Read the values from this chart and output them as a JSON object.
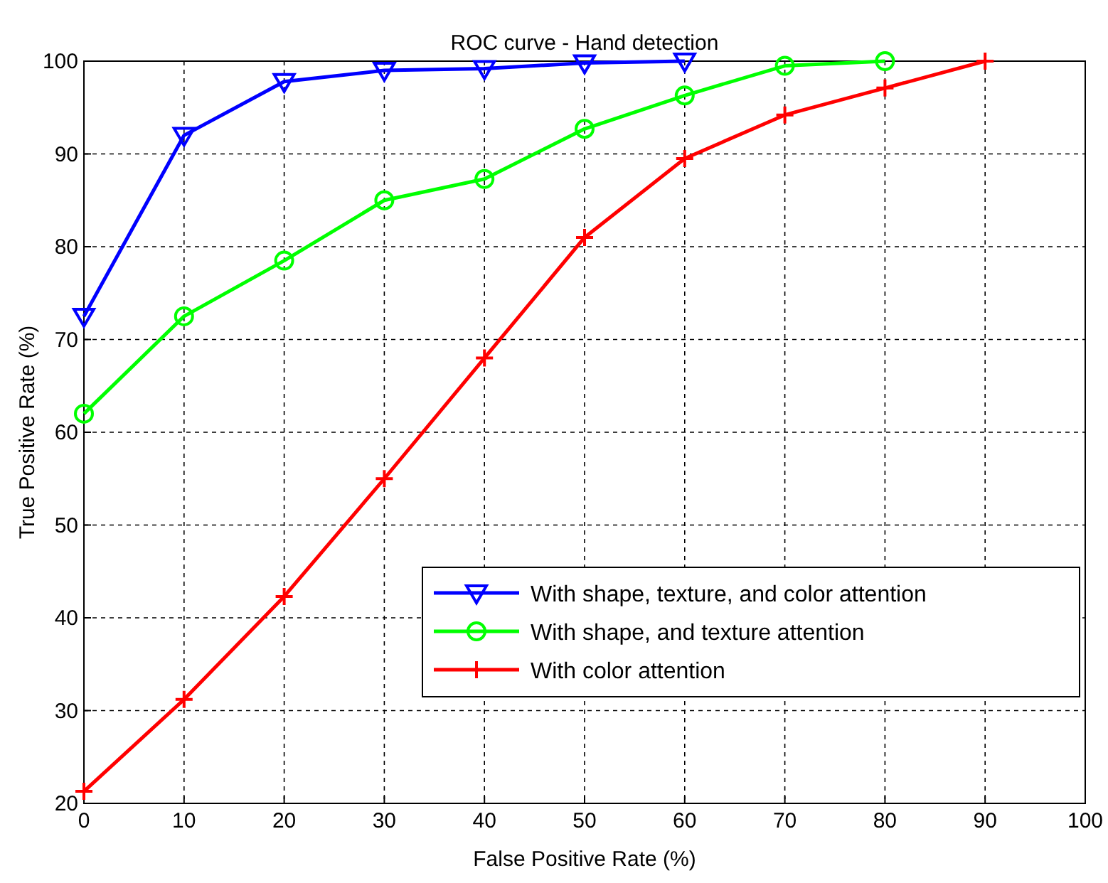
{
  "chart_data": {
    "type": "line",
    "title": "ROC curve - Hand detection",
    "xlabel": "False Positive Rate (%)",
    "ylabel": "True Positive Rate (%)",
    "series": [
      {
        "name": "With shape, texture, and color attention",
        "color": "#0000ff",
        "marker": "triangle",
        "x": [
          0,
          10,
          20,
          30,
          40,
          50,
          60
        ],
        "values": [
          72.5,
          92,
          97.8,
          99,
          99.2,
          99.8,
          100
        ]
      },
      {
        "name": "With shape, and texture attention",
        "color": "#00ff00",
        "marker": "circle",
        "x": [
          0,
          10,
          20,
          30,
          40,
          50,
          60,
          70,
          80
        ],
        "values": [
          62,
          72.5,
          78.5,
          85,
          87.3,
          92.7,
          96.3,
          99.5,
          100
        ]
      },
      {
        "name": "With color attention",
        "color": "#ff0000",
        "marker": "cross",
        "x": [
          0,
          10,
          20,
          30,
          40,
          50,
          60,
          70,
          80,
          90
        ],
        "values": [
          21.3,
          31.2,
          42.3,
          55,
          68,
          81,
          89.5,
          94.2,
          97.1,
          100
        ]
      }
    ],
    "xlim": [
      0,
      100
    ],
    "xticks": [
      0,
      10,
      20,
      30,
      40,
      50,
      60,
      70,
      80,
      90,
      100
    ],
    "ylim": [
      20,
      100
    ],
    "yticks": [
      20,
      30,
      40,
      50,
      60,
      70,
      80,
      90,
      100
    ],
    "grid": true,
    "legend": "bottom right",
    "line_style": "solid"
  }
}
